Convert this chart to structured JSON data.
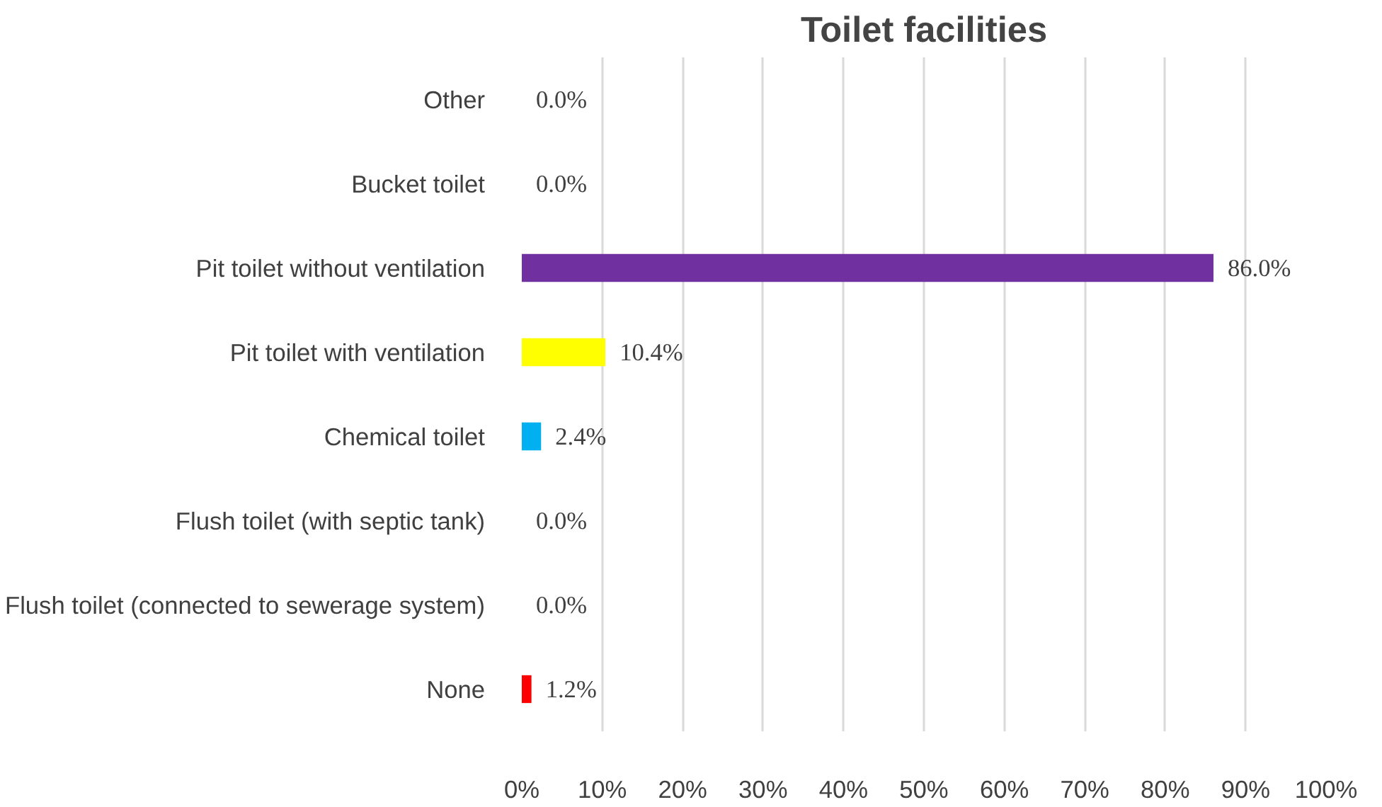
{
  "chart_data": {
    "type": "bar",
    "orientation": "horizontal",
    "title": "Toilet facilities",
    "categories": [
      "Other",
      "Bucket toilet",
      "Pit toilet without ventilation",
      "Pit toilet with ventilation",
      "Chemical toilet",
      "Flush toilet (with septic tank)",
      "Flush toilet (connected to sewerage system)",
      "None"
    ],
    "values": [
      0.0,
      0.0,
      86.0,
      10.4,
      2.4,
      0.0,
      0.0,
      1.2
    ],
    "colors": [
      "#a5a5a5",
      "#a5a5a5",
      "#7030a0",
      "#ffff00",
      "#00b0f0",
      "#a5a5a5",
      "#a5a5a5",
      "#ff0000"
    ],
    "value_labels": [
      "0.0%",
      "0.0%",
      "86.0%",
      "10.4%",
      "2.4%",
      "0.0%",
      "0.0%",
      "1.2%"
    ],
    "xlim": [
      0,
      100
    ],
    "xticks": [
      {
        "value": 0,
        "label": "0%"
      },
      {
        "value": 10,
        "label": "10%"
      },
      {
        "value": 20,
        "label": "20%"
      },
      {
        "value": 30,
        "label": "30%"
      },
      {
        "value": 40,
        "label": "40%"
      },
      {
        "value": 50,
        "label": "50%"
      },
      {
        "value": 60,
        "label": "60%"
      },
      {
        "value": 70,
        "label": "70%"
      },
      {
        "value": 80,
        "label": "80%"
      },
      {
        "value": 90,
        "label": "90%"
      },
      {
        "value": 100,
        "label": "100%"
      }
    ],
    "grid": "x"
  }
}
